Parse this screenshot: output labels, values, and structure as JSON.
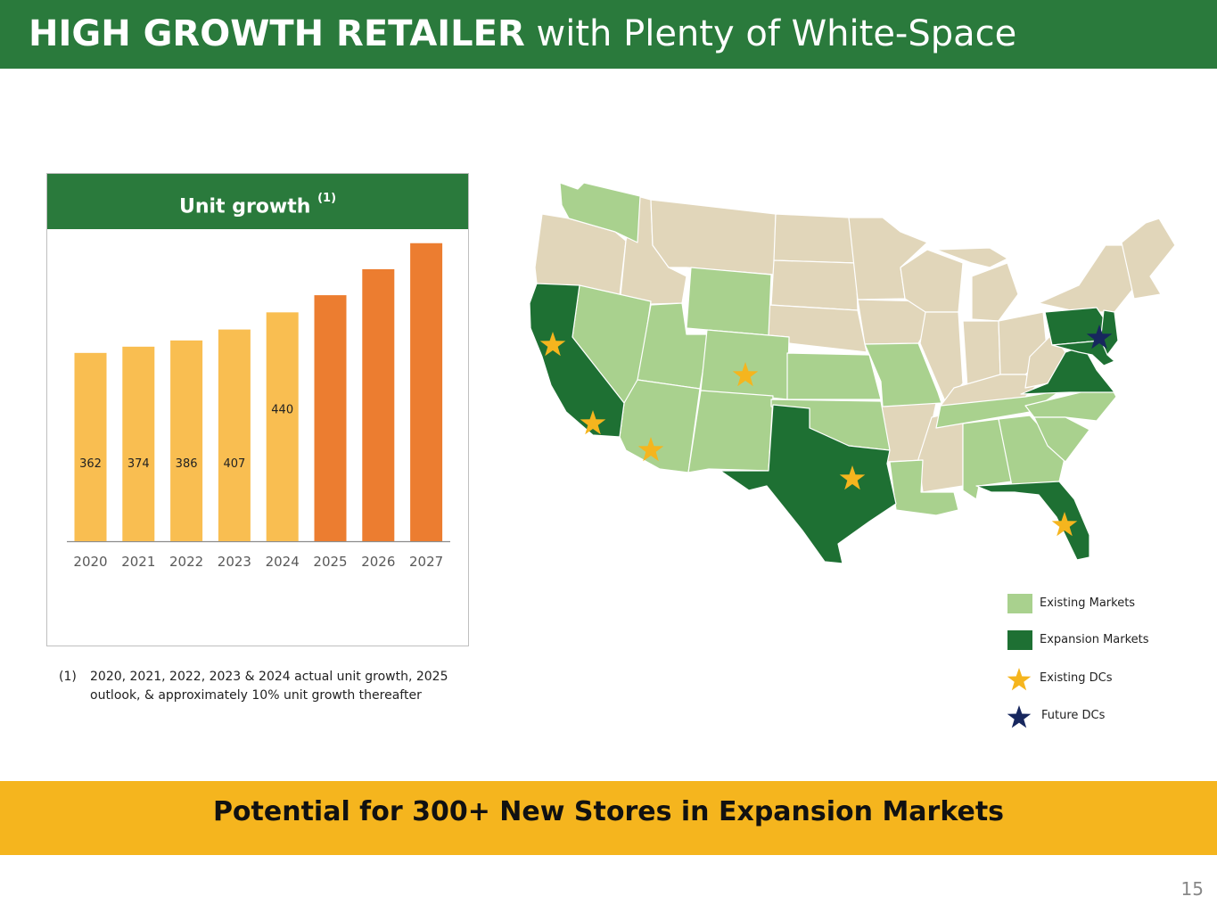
{
  "header": {
    "title_bold": "HIGH GROWTH RETAILER",
    "title_rest": " with Plenty of White-Space"
  },
  "chart_box": {
    "title": "Unit growth ",
    "title_sup": "(1)"
  },
  "chart_data": {
    "type": "bar",
    "categories": [
      "2020",
      "2021",
      "2022",
      "2023",
      "2024",
      "2025",
      "2026",
      "2027"
    ],
    "values": [
      362,
      374,
      386,
      407,
      440,
      473,
      523,
      573
    ],
    "data_labels": [
      "362",
      "374",
      "386",
      "407",
      "440",
      "",
      "",
      ""
    ],
    "series_kind": [
      "actual",
      "actual",
      "actual",
      "actual",
      "actual",
      "projected",
      "projected",
      "projected"
    ],
    "ylim": [
      0,
      600
    ],
    "colors": {
      "actual": "#f9be51",
      "projected": "#ec7d30",
      "axis": "#8c8c8c"
    },
    "title": "",
    "xlabel": "",
    "ylabel": ""
  },
  "footnote": {
    "number": "(1)",
    "text": "2020, 2021, 2022, 2023 & 2024 actual unit growth, 2025 outlook, & approximately 10% unit growth thereafter"
  },
  "map": {
    "colors": {
      "existing": "#a9d18e",
      "expansion": "#1e7033",
      "other": "#e1d6ba",
      "existing_dc": "#f5b51e",
      "future_dc": "#17275e"
    },
    "existing_markets": [
      "WA",
      "NV",
      "UT",
      "AZ",
      "WY",
      "CO",
      "NM",
      "KS",
      "OK",
      "MO",
      "LA",
      "TN",
      "AL",
      "GA",
      "NC",
      "SC"
    ],
    "expansion_markets": [
      "CA",
      "TX",
      "FL",
      "VA",
      "PA",
      "NJ",
      "MD",
      "DE"
    ],
    "existing_dcs": [
      "Northern California",
      "Southern California",
      "Arizona",
      "Colorado",
      "Texas",
      "Florida"
    ],
    "future_dcs": [
      "Mid-Atlantic"
    ]
  },
  "legend": {
    "existing_markets": "Existing Markets",
    "expansion_markets": "Expansion Markets",
    "existing_dcs": "Existing DCs",
    "future_dcs": "Future DCs"
  },
  "banner": {
    "text": "Potential for 300+ New Stores in Expansion Markets"
  },
  "page": {
    "number": "15"
  }
}
